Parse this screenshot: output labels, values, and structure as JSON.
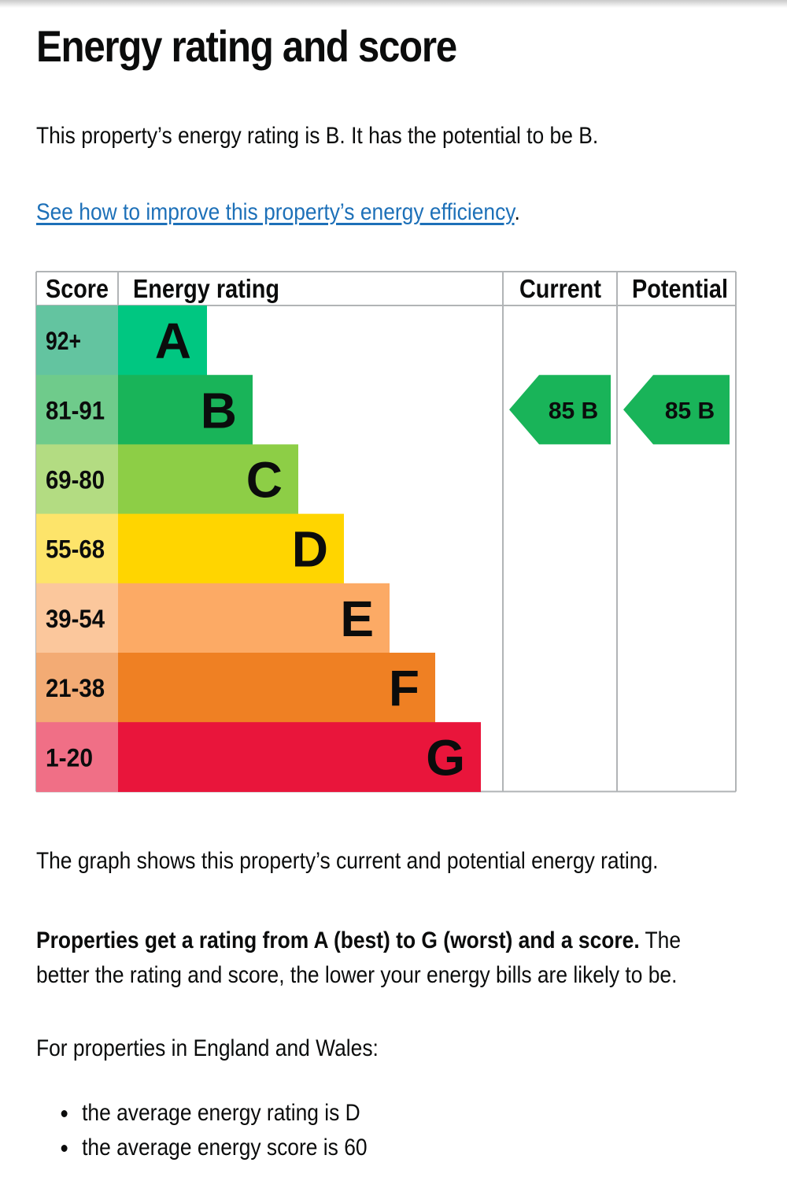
{
  "page": {
    "title": "Energy rating and score",
    "intro": "This property’s energy rating is B. It has the potential to be B.",
    "improve_link": "See how to improve this property’s energy efficiency",
    "improve_suffix": ".",
    "graph_note": "The graph shows this property’s current and potential energy rating.",
    "explain_bold": "Properties get a rating from A (best) to G (worst) and a score.",
    "explain_rest": " The better the rating and score, the lower your energy bills are likely to be.",
    "region_intro": "For properties in England and Wales:",
    "averages": [
      "the average energy rating is D",
      "the average energy score is 60"
    ]
  },
  "chart_data": {
    "type": "bar",
    "headers": {
      "score": "Score",
      "rating": "Energy rating",
      "current": "Current",
      "potential": "Potential"
    },
    "bands": [
      {
        "letter": "A",
        "range": "92+",
        "color": "#00c781",
        "score_bg": "#63c4a0"
      },
      {
        "letter": "B",
        "range": "81-91",
        "color": "#19b459",
        "score_bg": "#6fcb8b"
      },
      {
        "letter": "C",
        "range": "69-80",
        "color": "#8dce46",
        "score_bg": "#b3dc82"
      },
      {
        "letter": "D",
        "range": "55-68",
        "color": "#ffd500",
        "score_bg": "#fde46a"
      },
      {
        "letter": "E",
        "range": "39-54",
        "color": "#fcaa65",
        "score_bg": "#fbc79c"
      },
      {
        "letter": "F",
        "range": "21-38",
        "color": "#ef8023",
        "score_bg": "#f3ab74"
      },
      {
        "letter": "G",
        "range": "1-20",
        "color": "#e9153b",
        "score_bg": "#f06f86"
      }
    ],
    "current": {
      "score": 85,
      "band": "B",
      "label": "85 B"
    },
    "potential": {
      "score": 85,
      "band": "B",
      "label": "85 B"
    },
    "indicator_color": "#19b459",
    "text_color": "#0b0c0c",
    "grid_color": "#b1b4b6"
  }
}
